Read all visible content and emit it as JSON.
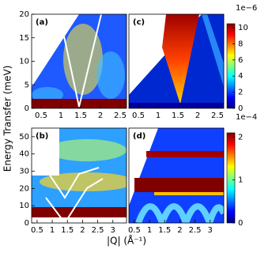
{
  "chart_data": [
    {
      "type": "heatmap",
      "panel_label": "(a)",
      "xlim": [
        0.26,
        2.66
      ],
      "xticks": [
        0.5,
        1,
        1.5,
        2,
        2.5
      ],
      "ylim": [
        0,
        20
      ],
      "yticks": [
        0,
        5,
        10,
        15,
        20
      ]
    },
    {
      "type": "heatmap",
      "panel_label": "(c)",
      "xlim": [
        0.26,
        2.66
      ],
      "xticks": [
        0.5,
        1,
        1.5,
        2,
        2.5
      ],
      "ylim": [
        0,
        20
      ]
    },
    {
      "type": "heatmap",
      "panel_label": "(b)",
      "xlim": [
        0.32,
        3.45
      ],
      "xticks": [
        0.5,
        1,
        1.5,
        2,
        2.5,
        3
      ],
      "ylim": [
        0,
        55
      ],
      "yticks": [
        0,
        10,
        20,
        30,
        40,
        50
      ]
    },
    {
      "type": "heatmap",
      "panel_label": "(d)",
      "xlim": [
        0.32,
        3.45
      ],
      "xticks": [
        0.5,
        1,
        1.5,
        2,
        2.5,
        3
      ],
      "ylim": [
        0,
        55
      ]
    }
  ],
  "colorbars": [
    {
      "ylim": [
        0,
        10.5
      ],
      "yticks": [
        0,
        2,
        4,
        6,
        8,
        10
      ],
      "offset_label": "1e−6"
    },
    {
      "ylim": [
        0,
        2.1
      ],
      "yticks": [
        0,
        1,
        2
      ],
      "offset_label": "1e−4"
    }
  ],
  "xlabel": "|Q| (Å⁻¹)",
  "ylabel": "Energy Transfer (meV)"
}
